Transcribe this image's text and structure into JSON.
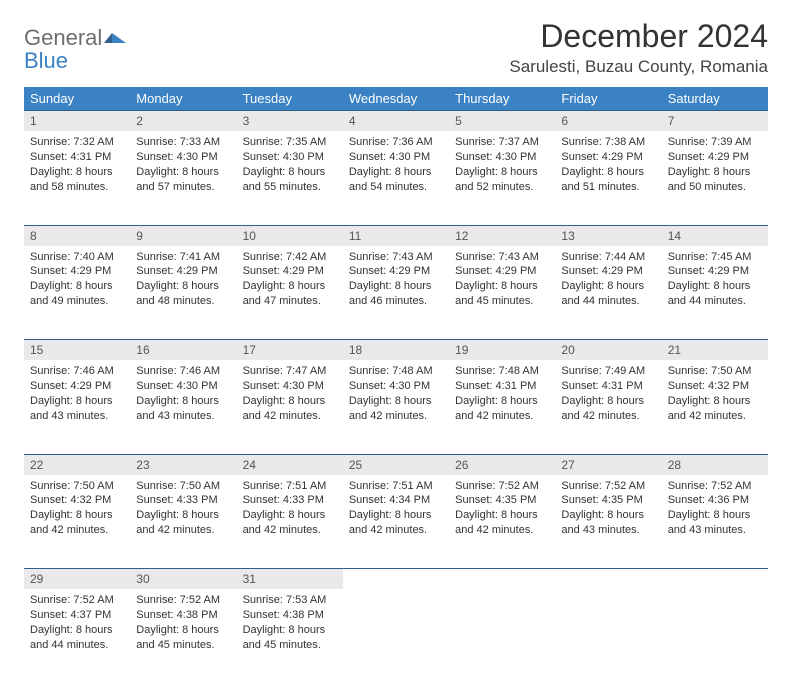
{
  "brand": {
    "part1": "General",
    "part2": "Blue"
  },
  "title": "December 2024",
  "location": "Sarulesti, Buzau County, Romania",
  "colors": {
    "header_bg": "#3b82c4",
    "header_text": "#ffffff",
    "daynum_bg": "#e9e9e9",
    "rule": "#2f5f8a",
    "body_bg": "#ffffff",
    "text": "#333333"
  },
  "weekdays": [
    "Sunday",
    "Monday",
    "Tuesday",
    "Wednesday",
    "Thursday",
    "Friday",
    "Saturday"
  ],
  "weeks": [
    [
      {
        "n": "1",
        "sr": "7:32 AM",
        "ss": "4:31 PM",
        "dl": "8 hours and 58 minutes."
      },
      {
        "n": "2",
        "sr": "7:33 AM",
        "ss": "4:30 PM",
        "dl": "8 hours and 57 minutes."
      },
      {
        "n": "3",
        "sr": "7:35 AM",
        "ss": "4:30 PM",
        "dl": "8 hours and 55 minutes."
      },
      {
        "n": "4",
        "sr": "7:36 AM",
        "ss": "4:30 PM",
        "dl": "8 hours and 54 minutes."
      },
      {
        "n": "5",
        "sr": "7:37 AM",
        "ss": "4:30 PM",
        "dl": "8 hours and 52 minutes."
      },
      {
        "n": "6",
        "sr": "7:38 AM",
        "ss": "4:29 PM",
        "dl": "8 hours and 51 minutes."
      },
      {
        "n": "7",
        "sr": "7:39 AM",
        "ss": "4:29 PM",
        "dl": "8 hours and 50 minutes."
      }
    ],
    [
      {
        "n": "8",
        "sr": "7:40 AM",
        "ss": "4:29 PM",
        "dl": "8 hours and 49 minutes."
      },
      {
        "n": "9",
        "sr": "7:41 AM",
        "ss": "4:29 PM",
        "dl": "8 hours and 48 minutes."
      },
      {
        "n": "10",
        "sr": "7:42 AM",
        "ss": "4:29 PM",
        "dl": "8 hours and 47 minutes."
      },
      {
        "n": "11",
        "sr": "7:43 AM",
        "ss": "4:29 PM",
        "dl": "8 hours and 46 minutes."
      },
      {
        "n": "12",
        "sr": "7:43 AM",
        "ss": "4:29 PM",
        "dl": "8 hours and 45 minutes."
      },
      {
        "n": "13",
        "sr": "7:44 AM",
        "ss": "4:29 PM",
        "dl": "8 hours and 44 minutes."
      },
      {
        "n": "14",
        "sr": "7:45 AM",
        "ss": "4:29 PM",
        "dl": "8 hours and 44 minutes."
      }
    ],
    [
      {
        "n": "15",
        "sr": "7:46 AM",
        "ss": "4:29 PM",
        "dl": "8 hours and 43 minutes."
      },
      {
        "n": "16",
        "sr": "7:46 AM",
        "ss": "4:30 PM",
        "dl": "8 hours and 43 minutes."
      },
      {
        "n": "17",
        "sr": "7:47 AM",
        "ss": "4:30 PM",
        "dl": "8 hours and 42 minutes."
      },
      {
        "n": "18",
        "sr": "7:48 AM",
        "ss": "4:30 PM",
        "dl": "8 hours and 42 minutes."
      },
      {
        "n": "19",
        "sr": "7:48 AM",
        "ss": "4:31 PM",
        "dl": "8 hours and 42 minutes."
      },
      {
        "n": "20",
        "sr": "7:49 AM",
        "ss": "4:31 PM",
        "dl": "8 hours and 42 minutes."
      },
      {
        "n": "21",
        "sr": "7:50 AM",
        "ss": "4:32 PM",
        "dl": "8 hours and 42 minutes."
      }
    ],
    [
      {
        "n": "22",
        "sr": "7:50 AM",
        "ss": "4:32 PM",
        "dl": "8 hours and 42 minutes."
      },
      {
        "n": "23",
        "sr": "7:50 AM",
        "ss": "4:33 PM",
        "dl": "8 hours and 42 minutes."
      },
      {
        "n": "24",
        "sr": "7:51 AM",
        "ss": "4:33 PM",
        "dl": "8 hours and 42 minutes."
      },
      {
        "n": "25",
        "sr": "7:51 AM",
        "ss": "4:34 PM",
        "dl": "8 hours and 42 minutes."
      },
      {
        "n": "26",
        "sr": "7:52 AM",
        "ss": "4:35 PM",
        "dl": "8 hours and 42 minutes."
      },
      {
        "n": "27",
        "sr": "7:52 AM",
        "ss": "4:35 PM",
        "dl": "8 hours and 43 minutes."
      },
      {
        "n": "28",
        "sr": "7:52 AM",
        "ss": "4:36 PM",
        "dl": "8 hours and 43 minutes."
      }
    ],
    [
      {
        "n": "29",
        "sr": "7:52 AM",
        "ss": "4:37 PM",
        "dl": "8 hours and 44 minutes."
      },
      {
        "n": "30",
        "sr": "7:52 AM",
        "ss": "4:38 PM",
        "dl": "8 hours and 45 minutes."
      },
      {
        "n": "31",
        "sr": "7:53 AM",
        "ss": "4:38 PM",
        "dl": "8 hours and 45 minutes."
      },
      null,
      null,
      null,
      null
    ]
  ],
  "labels": {
    "sunrise": "Sunrise:",
    "sunset": "Sunset:",
    "daylight": "Daylight:"
  }
}
